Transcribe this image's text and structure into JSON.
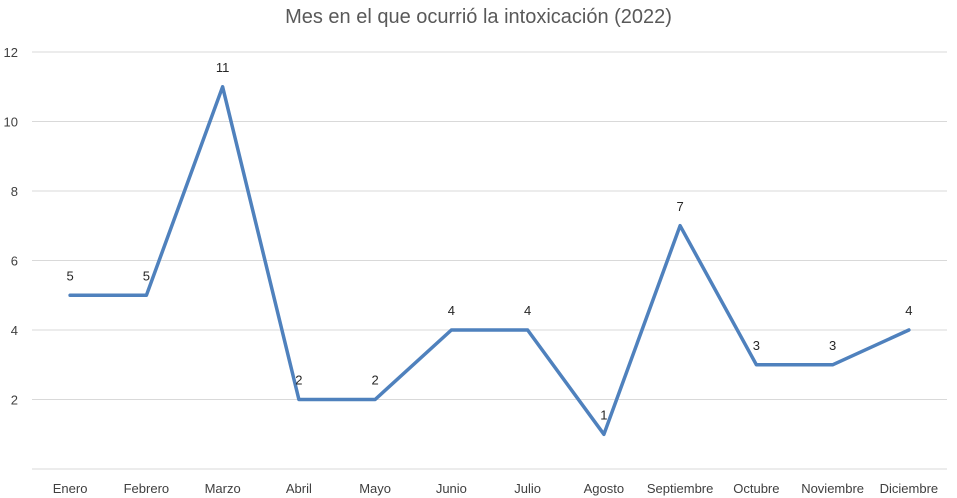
{
  "chart_data": {
    "type": "line",
    "title": "Mes en el que ocurrió la intoxicación (2022)",
    "xlabel": "",
    "ylabel": "",
    "categories": [
      "Enero",
      "Febrero",
      "Marzo",
      "Abril",
      "Mayo",
      "Junio",
      "Julio",
      "Agosto",
      "Septiembre",
      "Octubre",
      "Noviembre",
      "Diciembre"
    ],
    "series": [
      {
        "values": [
          5,
          5,
          11,
          2,
          2,
          4,
          4,
          1,
          7,
          3,
          3,
          4
        ]
      }
    ],
    "ylim": [
      0,
      12
    ],
    "yticks": [
      2,
      4,
      6,
      8,
      10,
      12
    ],
    "grid": true,
    "data_labels": true,
    "colors": {
      "line": "#4f81bd",
      "grid": "#d9d9d9",
      "axis": "#d9d9d9"
    }
  }
}
